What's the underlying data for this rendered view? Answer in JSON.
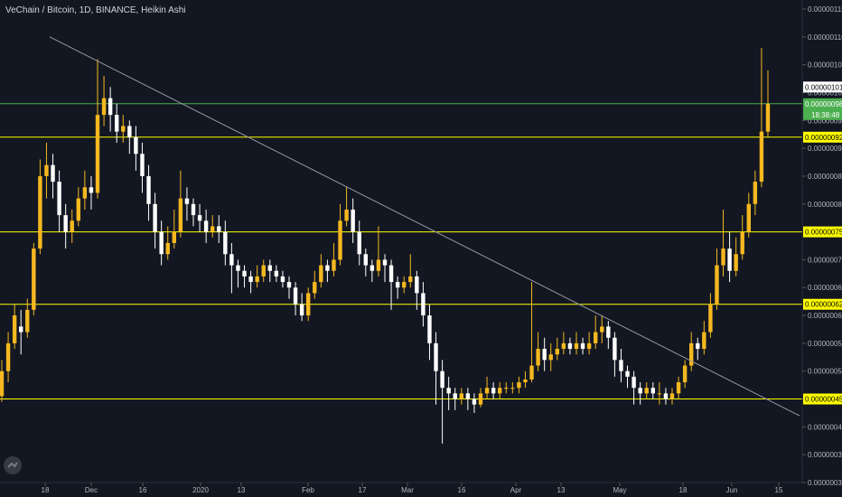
{
  "header": {
    "title": "VeChain / Bitcoin, 1D, BINANCE, Heikin Ashi"
  },
  "colors": {
    "background": "#131722",
    "bull": "#f5b81f",
    "bear": "#ffffff",
    "level_line": "#ffff00",
    "green_line": "#4caf50",
    "trend_line": "#9598a1",
    "axis_text": "#b2b5be"
  },
  "chart_data": {
    "type": "candlestick",
    "title": "VeChain / Bitcoin, 1D, BINANCE, Heikin Ashi",
    "ylim": [
      3e-07,
      1.15e-06
    ],
    "yticks": [
      "0.00000115",
      "0.00000110",
      "0.00000105",
      "0.00000100",
      "0.00000095",
      "0.00000090",
      "0.00000085",
      "0.00000080",
      "0.00000075",
      "0.00000070",
      "0.00000065",
      "0.00000060",
      "0.00000055",
      "0.00000050",
      "0.00000045",
      "0.00000040",
      "0.00000035",
      "0.00000030"
    ],
    "xticks": [
      "18",
      "Dec",
      "16",
      "2020",
      "13",
      "Feb",
      "17",
      "Mar",
      "16",
      "Apr",
      "13",
      "May",
      "18",
      "Jun",
      "15"
    ],
    "horizontal_levels": [
      {
        "label": "0.00000092",
        "value": 9.2e-07
      },
      {
        "label": "0.00000075",
        "value": 7.5e-07
      },
      {
        "label": "0.00000062",
        "value": 6.2e-07
      },
      {
        "label": "0.00000045",
        "value": 4.5e-07
      }
    ],
    "green_level": {
      "label": "0.00000098",
      "value": 9.8e-07
    },
    "last_price": {
      "label": "0.00000101",
      "value": 1.01e-06
    },
    "countdown": "18:38:48",
    "trendline": [
      {
        "date": "2019-11-14",
        "value": 1.1e-06
      },
      {
        "date": "2020-06-16",
        "value": 4.2e-07
      }
    ],
    "heikin_ashi_candles": [
      [
        4.55e-07,
        5e-07,
        4.45e-07,
        5.2e-07
      ],
      [
        5e-07,
        5.5e-07,
        4.8e-07,
        5.7e-07
      ],
      [
        5.5e-07,
        6e-07,
        5.4e-07,
        6.2e-07
      ],
      [
        5.8e-07,
        5.7e-07,
        5.3e-07,
        6.1e-07
      ],
      [
        5.7e-07,
        6.1e-07,
        5.6e-07,
        6.3e-07
      ],
      [
        6.1e-07,
        7.2e-07,
        6e-07,
        7.3e-07
      ],
      [
        7.2e-07,
        8.5e-07,
        7.1e-07,
        8.8e-07
      ],
      [
        8.5e-07,
        8.7e-07,
        8.1e-07,
        9.1e-07
      ],
      [
        8.7e-07,
        8.4e-07,
        8.1e-07,
        8.9e-07
      ],
      [
        8.4e-07,
        7.8e-07,
        7.5e-07,
        8.6e-07
      ],
      [
        7.8e-07,
        7.5e-07,
        7.2e-07,
        8e-07
      ],
      [
        7.5e-07,
        7.7e-07,
        7.3e-07,
        7.9e-07
      ],
      [
        7.7e-07,
        8.1e-07,
        7.6e-07,
        8.3e-07
      ],
      [
        8.1e-07,
        8.3e-07,
        7.9e-07,
        8.6e-07
      ],
      [
        8.3e-07,
        8.2e-07,
        7.9e-07,
        8.5e-07
      ],
      [
        8.2e-07,
        9.6e-07,
        8.1e-07,
        1.06e-06
      ],
      [
        9.6e-07,
        9.9e-07,
        9.4e-07,
        1.03e-06
      ],
      [
        9.9e-07,
        9.6e-07,
        9.3e-07,
        1.01e-06
      ],
      [
        9.6e-07,
        9.3e-07,
        9.1e-07,
        9.8e-07
      ],
      [
        9.3e-07,
        9.4e-07,
        9.1e-07,
        9.6e-07
      ],
      [
        9.4e-07,
        9.2e-07,
        8.9e-07,
        9.5e-07
      ],
      [
        9.2e-07,
        8.9e-07,
        8.6e-07,
        9.4e-07
      ],
      [
        8.9e-07,
        8.5e-07,
        8.2e-07,
        9.1e-07
      ],
      [
        8.5e-07,
        8e-07,
        7.7e-07,
        8.7e-07
      ],
      [
        8e-07,
        7.5e-07,
        7.2e-07,
        8.2e-07
      ],
      [
        7.5e-07,
        7.1e-07,
        6.9e-07,
        7.7e-07
      ],
      [
        7.1e-07,
        7.3e-07,
        7e-07,
        7.6e-07
      ],
      [
        7.3e-07,
        7.5e-07,
        7.2e-07,
        7.9e-07
      ],
      [
        7.5e-07,
        8.1e-07,
        7.4e-07,
        8.6e-07
      ],
      [
        8.1e-07,
        8e-07,
        7.7e-07,
        8.3e-07
      ],
      [
        8e-07,
        7.8e-07,
        7.6e-07,
        8.1e-07
      ],
      [
        7.8e-07,
        7.7e-07,
        7.5e-07,
        8e-07
      ],
      [
        7.7e-07,
        7.5e-07,
        7.3e-07,
        7.9e-07
      ],
      [
        7.5e-07,
        7.6e-07,
        7.4e-07,
        7.8e-07
      ],
      [
        7.6e-07,
        7.5e-07,
        7.3e-07,
        7.8e-07
      ],
      [
        7.5e-07,
        7.1e-07,
        6.9e-07,
        7.7e-07
      ],
      [
        7.1e-07,
        6.9e-07,
        6.4e-07,
        7.3e-07
      ],
      [
        6.9e-07,
        6.8e-07,
        6.5e-07,
        7e-07
      ],
      [
        6.8e-07,
        6.7e-07,
        6.5e-07,
        6.9e-07
      ],
      [
        6.7e-07,
        6.6e-07,
        6.4e-07,
        6.8e-07
      ],
      [
        6.6e-07,
        6.7e-07,
        6.5e-07,
        6.9e-07
      ],
      [
        6.7e-07,
        6.9e-07,
        6.6e-07,
        7e-07
      ],
      [
        6.9e-07,
        6.8e-07,
        6.6e-07,
        7e-07
      ],
      [
        6.8e-07,
        6.7e-07,
        6.6e-07,
        6.9e-07
      ],
      [
        6.7e-07,
        6.6e-07,
        6.5e-07,
        6.8e-07
      ],
      [
        6.6e-07,
        6.5e-07,
        6.3e-07,
        6.7e-07
      ],
      [
        6.5e-07,
        6.2e-07,
        6e-07,
        6.6e-07
      ],
      [
        6.2e-07,
        6e-07,
        5.9e-07,
        6.4e-07
      ],
      [
        6e-07,
        6.4e-07,
        5.9e-07,
        6.5e-07
      ],
      [
        6.4e-07,
        6.6e-07,
        6.3e-07,
        6.8e-07
      ],
      [
        6.6e-07,
        6.9e-07,
        6.5e-07,
        7.1e-07
      ],
      [
        6.9e-07,
        6.8e-07,
        6.6e-07,
        7e-07
      ],
      [
        6.8e-07,
        7e-07,
        6.7e-07,
        7.3e-07
      ],
      [
        7e-07,
        7.7e-07,
        6.9e-07,
        8e-07
      ],
      [
        7.7e-07,
        7.9e-07,
        7.6e-07,
        8.3e-07
      ],
      [
        7.9e-07,
        7.5e-07,
        7.3e-07,
        8.1e-07
      ],
      [
        7.5e-07,
        7.1e-07,
        6.9e-07,
        7.7e-07
      ],
      [
        7.1e-07,
        6.9e-07,
        6.7e-07,
        7.2e-07
      ],
      [
        6.9e-07,
        6.8e-07,
        6.6e-07,
        7e-07
      ],
      [
        6.8e-07,
        7e-07,
        6.7e-07,
        7.6e-07
      ],
      [
        7e-07,
        6.9e-07,
        6.6e-07,
        7.1e-07
      ],
      [
        6.9e-07,
        6.6e-07,
        6.1e-07,
        7e-07
      ],
      [
        6.6e-07,
        6.5e-07,
        6.3e-07,
        6.7e-07
      ],
      [
        6.5e-07,
        6.6e-07,
        6.4e-07,
        6.7e-07
      ],
      [
        6.6e-07,
        6.7e-07,
        6.5e-07,
        7.1e-07
      ],
      [
        6.7e-07,
        6.4e-07,
        6.1e-07,
        6.8e-07
      ],
      [
        6.4e-07,
        6e-07,
        5.8e-07,
        6.6e-07
      ],
      [
        6e-07,
        5.5e-07,
        5.2e-07,
        6.2e-07
      ],
      [
        5.5e-07,
        5e-07,
        4.4e-07,
        5.7e-07
      ],
      [
        5e-07,
        4.7e-07,
        3.7e-07,
        5.2e-07
      ],
      [
        4.7e-07,
        4.6e-07,
        4.3e-07,
        4.9e-07
      ],
      [
        4.6e-07,
        4.5e-07,
        4.3e-07,
        4.7e-07
      ],
      [
        4.5e-07,
        4.6e-07,
        4.4e-07,
        4.7e-07
      ],
      [
        4.6e-07,
        4.5e-07,
        4.3e-07,
        4.7e-07
      ],
      [
        4.5e-07,
        4.4e-07,
        4.25e-07,
        4.6e-07
      ],
      [
        4.4e-07,
        4.6e-07,
        4.35e-07,
        4.7e-07
      ],
      [
        4.6e-07,
        4.7e-07,
        4.5e-07,
        4.9e-07
      ],
      [
        4.7e-07,
        4.6e-07,
        4.5e-07,
        4.8e-07
      ],
      [
        4.6e-07,
        4.7e-07,
        4.5e-07,
        4.8e-07
      ],
      [
        4.7e-07,
        4.7e-07,
        4.6e-07,
        4.8e-07
      ],
      [
        4.7e-07,
        4.7e-07,
        4.6e-07,
        4.8e-07
      ],
      [
        4.7e-07,
        4.8e-07,
        4.6e-07,
        4.9e-07
      ],
      [
        4.8e-07,
        4.85e-07,
        4.7e-07,
        5e-07
      ],
      [
        4.85e-07,
        5.1e-07,
        4.8e-07,
        6.6e-07
      ],
      [
        5.1e-07,
        5.4e-07,
        5e-07,
        5.7e-07
      ],
      [
        5.4e-07,
        5.2e-07,
        5e-07,
        5.6e-07
      ],
      [
        5.2e-07,
        5.3e-07,
        5e-07,
        5.5e-07
      ],
      [
        5.3e-07,
        5.4e-07,
        5.2e-07,
        5.6e-07
      ],
      [
        5.4e-07,
        5.5e-07,
        5.3e-07,
        5.7e-07
      ],
      [
        5.5e-07,
        5.4e-07,
        5.3e-07,
        5.6e-07
      ],
      [
        5.4e-07,
        5.5e-07,
        5.3e-07,
        5.7e-07
      ],
      [
        5.5e-07,
        5.4e-07,
        5.3e-07,
        5.6e-07
      ],
      [
        5.4e-07,
        5.5e-07,
        5.3e-07,
        5.7e-07
      ],
      [
        5.5e-07,
        5.7e-07,
        5.4e-07,
        6e-07
      ],
      [
        5.7e-07,
        5.8e-07,
        5.5e-07,
        6e-07
      ],
      [
        5.8e-07,
        5.6e-07,
        5.4e-07,
        5.9e-07
      ],
      [
        5.6e-07,
        5.2e-07,
        4.9e-07,
        5.7e-07
      ],
      [
        5.2e-07,
        5e-07,
        4.8e-07,
        5.4e-07
      ],
      [
        5e-07,
        4.9e-07,
        4.7e-07,
        5.1e-07
      ],
      [
        4.9e-07,
        4.7e-07,
        4.4e-07,
        5e-07
      ],
      [
        4.7e-07,
        4.6e-07,
        4.4e-07,
        4.8e-07
      ],
      [
        4.6e-07,
        4.7e-07,
        4.5e-07,
        4.8e-07
      ],
      [
        4.7e-07,
        4.6e-07,
        4.5e-07,
        4.8e-07
      ],
      [
        4.6e-07,
        4.6e-07,
        4.4e-07,
        4.8e-07
      ],
      [
        4.6e-07,
        4.5e-07,
        4.4e-07,
        4.7e-07
      ],
      [
        4.5e-07,
        4.6e-07,
        4.4e-07,
        4.7e-07
      ],
      [
        4.6e-07,
        4.8e-07,
        4.5e-07,
        4.9e-07
      ],
      [
        4.8e-07,
        5.1e-07,
        4.7e-07,
        5.2e-07
      ],
      [
        5.1e-07,
        5.5e-07,
        5e-07,
        5.7e-07
      ],
      [
        5.5e-07,
        5.4e-07,
        5.2e-07,
        5.6e-07
      ],
      [
        5.4e-07,
        5.7e-07,
        5.3e-07,
        5.9e-07
      ],
      [
        5.7e-07,
        6.2e-07,
        5.6e-07,
        6.4e-07
      ],
      [
        6.2e-07,
        6.9e-07,
        6.1e-07,
        7.2e-07
      ],
      [
        6.9e-07,
        7.2e-07,
        6.7e-07,
        7.9e-07
      ],
      [
        7.2e-07,
        6.8e-07,
        6.6e-07,
        7.5e-07
      ],
      [
        6.8e-07,
        7.1e-07,
        6.7e-07,
        7.4e-07
      ],
      [
        7.1e-07,
        7.5e-07,
        7e-07,
        7.8e-07
      ],
      [
        7.5e-07,
        8e-07,
        7.4e-07,
        8.2e-07
      ],
      [
        8e-07,
        8.4e-07,
        7.8e-07,
        8.6e-07
      ],
      [
        8.4e-07,
        9.3e-07,
        8.3e-07,
        1.08e-06
      ],
      [
        9.3e-07,
        9.8e-07,
        9.2e-07,
        1.04e-06
      ]
    ]
  }
}
